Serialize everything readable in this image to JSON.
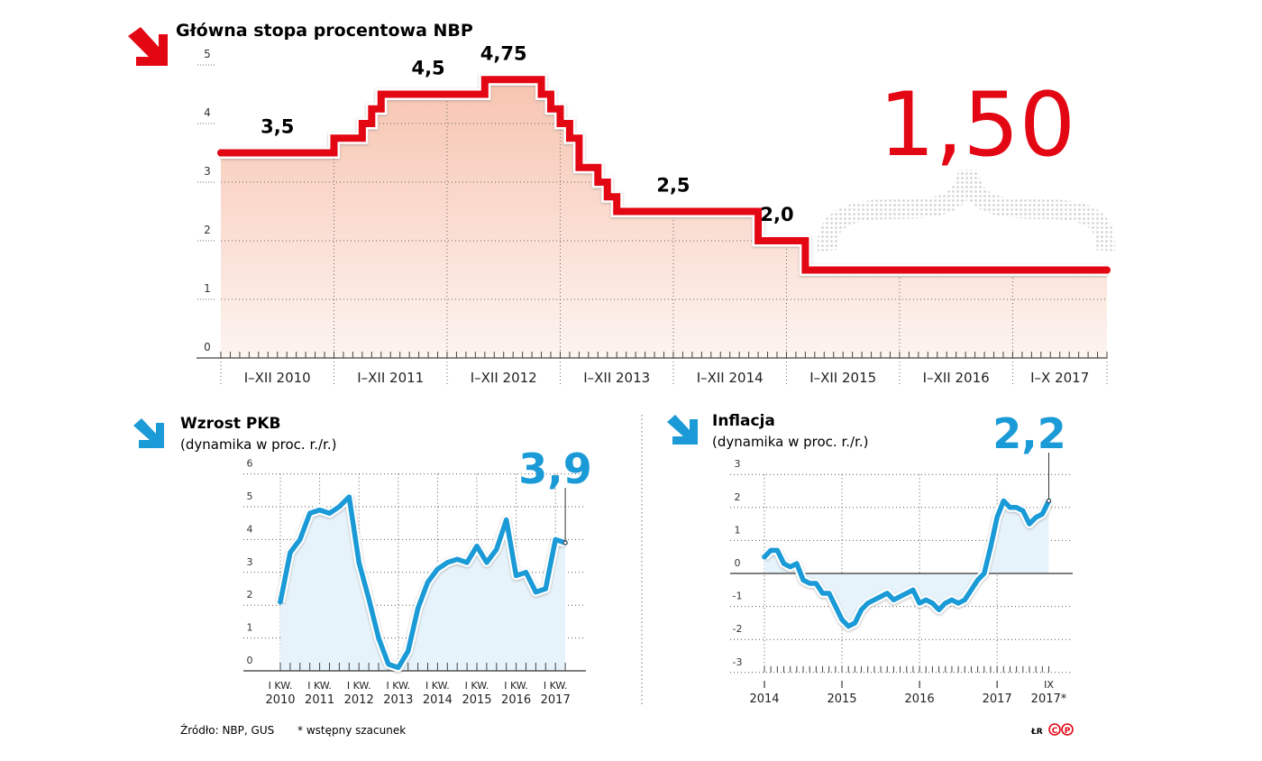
{
  "colors": {
    "red": "#e30613",
    "blue": "#1a9ad6",
    "red_fill_top": "#f7c4b0",
    "red_fill_bottom": "#fdf4f0",
    "blue_fill": "#e7f3fb",
    "grid": "#555555"
  },
  "footer": {
    "source": "Źródło: NBP, GUS",
    "note": "* wstępny szacunek",
    "credit": "ŁR",
    "icons": [
      "copyright-icon",
      "phonogram-icon"
    ]
  },
  "chart_data": [
    {
      "type": "line",
      "title": "Główna stopa procentowa NBP",
      "icon": "arrow-down-right-icon",
      "highlight": "1,50",
      "ylim": [
        0,
        5
      ],
      "yticks": [
        "0",
        "1",
        "2",
        "3",
        "4",
        "5"
      ],
      "xticks": [
        "I–XII 2010",
        "I–XII 2011",
        "I–XII 2012",
        "I–XII 2013",
        "I–XII 2014",
        "I–XII 2015",
        "I–XII 2016",
        "I–X 2017"
      ],
      "x_range": [
        "2010-01",
        "2017-10"
      ],
      "step": true,
      "steps": [
        {
          "from": "2010-01",
          "value": 3.5
        },
        {
          "from": "2011-01",
          "value": 3.75
        },
        {
          "from": "2011-04",
          "value": 4.0
        },
        {
          "from": "2011-05",
          "value": 4.25
        },
        {
          "from": "2011-06",
          "value": 4.5
        },
        {
          "from": "2012-05",
          "value": 4.75
        },
        {
          "from": "2012-11",
          "value": 4.5
        },
        {
          "from": "2012-12",
          "value": 4.25
        },
        {
          "from": "2013-01",
          "value": 4.0
        },
        {
          "from": "2013-02",
          "value": 3.75
        },
        {
          "from": "2013-03",
          "value": 3.25
        },
        {
          "from": "2013-05",
          "value": 3.0
        },
        {
          "from": "2013-06",
          "value": 2.75
        },
        {
          "from": "2013-07",
          "value": 2.5
        },
        {
          "from": "2014-10",
          "value": 2.0
        },
        {
          "from": "2015-03",
          "value": 1.5
        }
      ],
      "data_labels": [
        {
          "at": "2010-07",
          "value": 3.5,
          "text": "3,5"
        },
        {
          "at": "2011-11",
          "value": 4.5,
          "text": "4,5"
        },
        {
          "at": "2012-07",
          "value": 4.75,
          "text": "4,75"
        },
        {
          "at": "2014-01",
          "value": 2.5,
          "text": "2,5"
        },
        {
          "at": "2014-12",
          "value": 2.0,
          "text": "2,0"
        }
      ]
    },
    {
      "type": "line",
      "title": "Wzrost PKB",
      "subtitle": "(dynamika w proc. r./r.)",
      "icon": "arrow-down-right-icon",
      "highlight": "3,9",
      "ylim": [
        0,
        6
      ],
      "yticks": [
        "0",
        "1",
        "2",
        "3",
        "4",
        "5",
        "6"
      ],
      "xticks": [
        [
          "I KW.",
          "2010"
        ],
        [
          "I KW.",
          "2011"
        ],
        [
          "I KW.",
          "2012"
        ],
        [
          "I KW.",
          "2013"
        ],
        [
          "I KW.",
          "2014"
        ],
        [
          "I KW.",
          "2015"
        ],
        [
          "I KW.",
          "2016"
        ],
        [
          "I KW.",
          "2017"
        ]
      ],
      "x": [
        "2010Q1",
        "2010Q2",
        "2010Q3",
        "2010Q4",
        "2011Q1",
        "2011Q2",
        "2011Q3",
        "2011Q4",
        "2012Q1",
        "2012Q2",
        "2012Q3",
        "2012Q4",
        "2013Q1",
        "2013Q2",
        "2013Q3",
        "2013Q4",
        "2014Q1",
        "2014Q2",
        "2014Q3",
        "2014Q4",
        "2015Q1",
        "2015Q2",
        "2015Q3",
        "2015Q4",
        "2016Q1",
        "2016Q2",
        "2016Q3",
        "2016Q4",
        "2017Q1",
        "2017Q2"
      ],
      "values": [
        2.1,
        3.6,
        4.0,
        4.8,
        4.9,
        4.8,
        5.0,
        5.3,
        3.3,
        2.2,
        1.0,
        0.2,
        0.1,
        0.6,
        1.9,
        2.7,
        3.1,
        3.3,
        3.4,
        3.3,
        3.8,
        3.3,
        3.7,
        4.6,
        2.9,
        3.0,
        2.4,
        2.5,
        4.0,
        3.9
      ]
    },
    {
      "type": "line",
      "title": "Inflacja",
      "subtitle": "(dynamika w proc. r./r.)",
      "icon": "arrow-down-right-icon",
      "highlight": "2,2",
      "ylim": [
        -3,
        3
      ],
      "yticks": [
        "-3",
        "-2",
        "-1",
        "0",
        "1",
        "2",
        "3"
      ],
      "xticks": [
        [
          "I",
          "2014"
        ],
        [
          "I",
          "2015"
        ],
        [
          "I",
          "2016"
        ],
        [
          "I",
          "2017"
        ],
        [
          "IX",
          "2017*"
        ]
      ],
      "x_range": [
        "2014-01",
        "2017-09"
      ],
      "values": [
        0.5,
        0.7,
        0.7,
        0.3,
        0.2,
        0.3,
        -0.2,
        -0.3,
        -0.3,
        -0.6,
        -0.6,
        -1.0,
        -1.4,
        -1.6,
        -1.5,
        -1.1,
        -0.9,
        -0.8,
        -0.7,
        -0.6,
        -0.8,
        -0.7,
        -0.6,
        -0.5,
        -0.9,
        -0.8,
        -0.9,
        -1.1,
        -0.9,
        -0.8,
        -0.9,
        -0.8,
        -0.5,
        -0.2,
        0.0,
        0.8,
        1.7,
        2.2,
        2.0,
        2.0,
        1.9,
        1.5,
        1.7,
        1.8,
        2.2
      ]
    }
  ]
}
